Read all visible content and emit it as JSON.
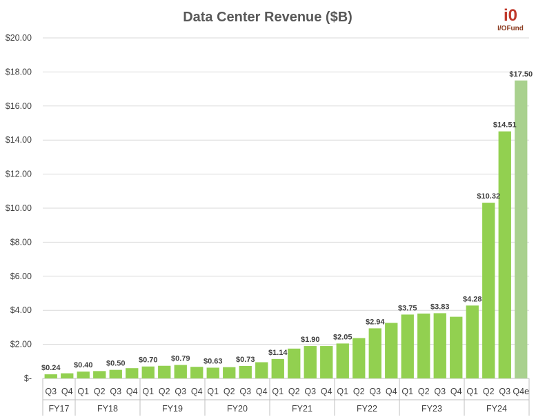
{
  "chart_data": {
    "type": "bar",
    "title": "Data Center Revenue ($B)",
    "xlabel": "",
    "ylabel": "",
    "ylim": [
      0,
      20
    ],
    "y_ticks": [
      "$-",
      "$2.00",
      "$4.00",
      "$6.00",
      "$8.00",
      "$10.00",
      "$12.00",
      "$14.00",
      "$16.00",
      "$18.00",
      "$20.00"
    ],
    "grid": true,
    "legend": "none",
    "categories": [
      "Q3",
      "Q4",
      "Q1",
      "Q2",
      "Q3",
      "Q4",
      "Q1",
      "Q2",
      "Q3",
      "Q4",
      "Q1",
      "Q2",
      "Q3",
      "Q4",
      "Q1",
      "Q2",
      "Q3",
      "Q4",
      "Q1",
      "Q2",
      "Q3",
      "Q4",
      "Q1",
      "Q2",
      "Q3",
      "Q4",
      "Q1",
      "Q2",
      "Q3",
      "Q4e"
    ],
    "values": [
      0.24,
      0.3,
      0.4,
      0.43,
      0.5,
      0.6,
      0.7,
      0.74,
      0.79,
      0.68,
      0.63,
      0.66,
      0.73,
      0.95,
      1.14,
      1.75,
      1.9,
      1.9,
      2.05,
      2.37,
      2.94,
      3.26,
      3.75,
      3.81,
      3.83,
      3.62,
      4.28,
      10.32,
      14.51,
      17.5
    ],
    "data_labels": [
      "$0.24",
      "",
      "$0.40",
      "",
      "$0.50",
      "",
      "$0.70",
      "",
      "$0.79",
      "",
      "$0.63",
      "",
      "$0.73",
      "",
      "$1.14",
      "",
      "$1.90",
      "",
      "$2.05",
      "",
      "$2.94",
      "",
      "$3.75",
      "",
      "$3.83",
      "",
      "$4.28",
      "$10.32",
      "$14.51",
      "$17.50"
    ],
    "estimate_index": 29,
    "groups": [
      {
        "label": "FY17",
        "start": 0,
        "count": 2
      },
      {
        "label": "FY18",
        "start": 2,
        "count": 4
      },
      {
        "label": "FY19",
        "start": 6,
        "count": 4
      },
      {
        "label": "FY20",
        "start": 10,
        "count": 4
      },
      {
        "label": "FY21",
        "start": 14,
        "count": 4
      },
      {
        "label": "FY22",
        "start": 18,
        "count": 4
      },
      {
        "label": "FY23",
        "start": 22,
        "count": 4
      },
      {
        "label": "FY24",
        "start": 26,
        "count": 4
      }
    ],
    "colors": {
      "bar": "#92d050",
      "estimate_bar": "#a9d18e",
      "grid": "#d9d9d9",
      "axis": "#bfbfbf"
    }
  },
  "logo": {
    "mark": "i0",
    "text": "I/OFund"
  }
}
